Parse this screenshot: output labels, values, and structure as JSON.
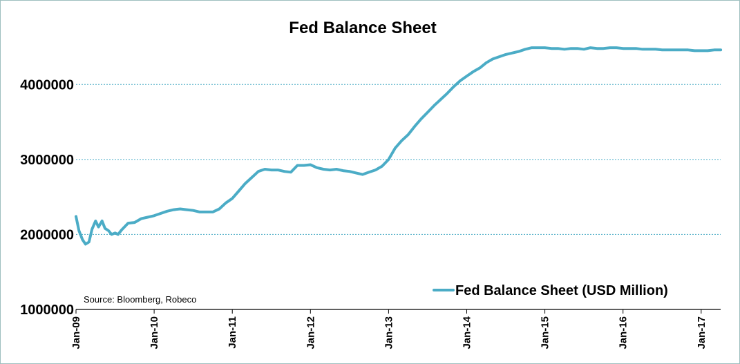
{
  "chart_data": {
    "type": "line",
    "title": "Fed Balance Sheet",
    "xlabel": "",
    "ylabel": "",
    "ylim": [
      1000000,
      4500000
    ],
    "y_ticks": [
      "1000000",
      "2000000",
      "3000000",
      "4000000"
    ],
    "y_tick_values": [
      1000000,
      2000000,
      3000000,
      4000000
    ],
    "x_ticks": [
      "Jan-09",
      "Jan-10",
      "Jan-11",
      "Jan-12",
      "Jan-13",
      "Jan-14",
      "Jan-15",
      "Jan-16",
      "Jan-17"
    ],
    "grid": "horizontal dashed",
    "legend_position": "bottom-right",
    "source": "Source: Bloomberg,  Robeco",
    "series": [
      {
        "name": "Fed Balance Sheet (USD Million)",
        "color": "#4bacc6",
        "x": [
          "2009-01-01",
          "2009-01-15",
          "2009-02-01",
          "2009-02-15",
          "2009-03-01",
          "2009-03-15",
          "2009-04-01",
          "2009-04-15",
          "2009-05-01",
          "2009-05-15",
          "2009-06-01",
          "2009-06-15",
          "2009-07-01",
          "2009-07-15",
          "2009-08-01",
          "2009-09-01",
          "2009-10-01",
          "2009-11-01",
          "2009-12-01",
          "2010-01-01",
          "2010-02-01",
          "2010-03-01",
          "2010-04-01",
          "2010-05-01",
          "2010-06-01",
          "2010-07-01",
          "2010-08-01",
          "2010-09-01",
          "2010-10-01",
          "2010-11-01",
          "2010-12-01",
          "2011-01-01",
          "2011-02-01",
          "2011-03-01",
          "2011-04-01",
          "2011-05-01",
          "2011-06-01",
          "2011-07-01",
          "2011-08-01",
          "2011-09-01",
          "2011-10-01",
          "2011-11-01",
          "2011-12-01",
          "2012-01-01",
          "2012-02-01",
          "2012-03-01",
          "2012-04-01",
          "2012-05-01",
          "2012-06-01",
          "2012-07-01",
          "2012-08-01",
          "2012-09-01",
          "2012-10-01",
          "2012-11-01",
          "2012-12-01",
          "2013-01-01",
          "2013-02-01",
          "2013-03-01",
          "2013-04-01",
          "2013-05-01",
          "2013-06-01",
          "2013-07-01",
          "2013-08-01",
          "2013-09-01",
          "2013-10-01",
          "2013-11-01",
          "2013-12-01",
          "2014-01-01",
          "2014-02-01",
          "2014-03-01",
          "2014-04-01",
          "2014-05-01",
          "2014-06-01",
          "2014-07-01",
          "2014-08-01",
          "2014-09-01",
          "2014-10-01",
          "2014-11-01",
          "2014-12-01",
          "2015-01-01",
          "2015-02-01",
          "2015-03-01",
          "2015-04-01",
          "2015-05-01",
          "2015-06-01",
          "2015-07-01",
          "2015-08-01",
          "2015-09-01",
          "2015-10-01",
          "2015-11-01",
          "2015-12-01",
          "2016-01-01",
          "2016-02-01",
          "2016-03-01",
          "2016-04-01",
          "2016-05-01",
          "2016-06-01",
          "2016-07-01",
          "2016-08-01",
          "2016-09-01",
          "2016-10-01",
          "2016-11-01",
          "2016-12-01",
          "2017-01-01",
          "2017-02-01",
          "2017-03-01",
          "2017-04-01"
        ],
        "values": [
          2240000,
          2050000,
          1930000,
          1870000,
          1900000,
          2070000,
          2180000,
          2100000,
          2180000,
          2080000,
          2050000,
          2000000,
          2020000,
          2000000,
          2060000,
          2150000,
          2160000,
          2210000,
          2230000,
          2250000,
          2280000,
          2310000,
          2330000,
          2340000,
          2330000,
          2320000,
          2300000,
          2300000,
          2300000,
          2340000,
          2420000,
          2480000,
          2580000,
          2680000,
          2760000,
          2840000,
          2870000,
          2860000,
          2860000,
          2840000,
          2830000,
          2920000,
          2920000,
          2930000,
          2890000,
          2870000,
          2860000,
          2870000,
          2850000,
          2840000,
          2820000,
          2800000,
          2830000,
          2860000,
          2910000,
          3000000,
          3150000,
          3250000,
          3330000,
          3440000,
          3540000,
          3630000,
          3720000,
          3800000,
          3880000,
          3970000,
          4050000,
          4110000,
          4170000,
          4220000,
          4290000,
          4340000,
          4370000,
          4400000,
          4420000,
          4440000,
          4470000,
          4490000,
          4490000,
          4490000,
          4480000,
          4480000,
          4470000,
          4480000,
          4480000,
          4470000,
          4490000,
          4480000,
          4480000,
          4490000,
          4490000,
          4480000,
          4480000,
          4480000,
          4470000,
          4470000,
          4470000,
          4460000,
          4460000,
          4460000,
          4460000,
          4460000,
          4450000,
          4450000,
          4450000,
          4460000,
          4460000
        ]
      }
    ]
  }
}
